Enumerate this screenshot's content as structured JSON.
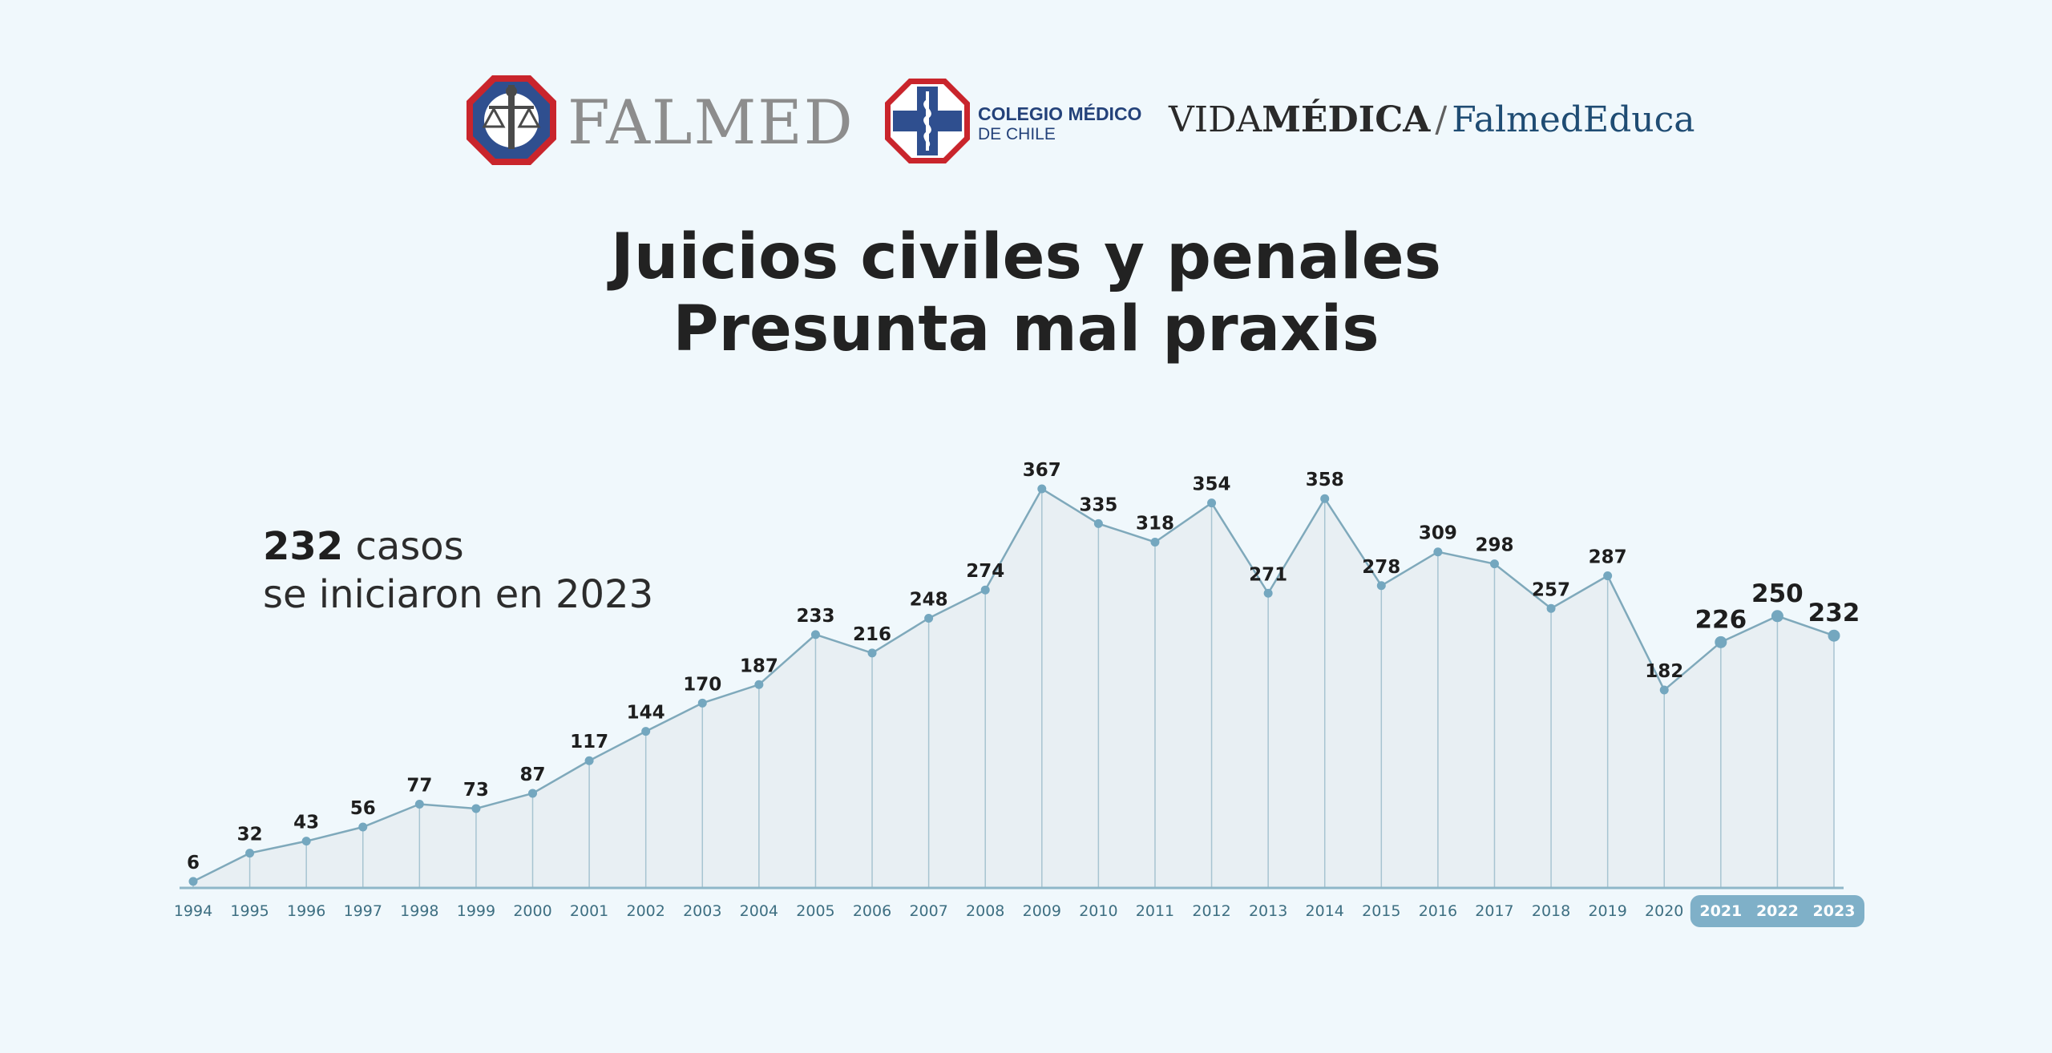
{
  "logos": {
    "falmed": "FALMED",
    "colegio_line1": "COLEGIO MÉDICO",
    "colegio_line2": "DE CHILE",
    "vida_regular": "VIDA",
    "vida_bold": "MÉDICA",
    "separator": "/",
    "falmed_educa": "FalmedEduca"
  },
  "heading": {
    "line1": "Juicios civiles y penales",
    "line2": "Presunta mal praxis"
  },
  "note": {
    "count": "232",
    "unit": " casos",
    "line2": "se iniciaron en 2023"
  },
  "colors": {
    "background": "#f0f8fc",
    "line": "#7fa9bb",
    "point": "#74a7bf",
    "area": "#e8eff3",
    "highlight_band": "#7fb0c8"
  },
  "chart_data": {
    "type": "area",
    "title": "",
    "xlabel": "",
    "ylabel": "",
    "x": [
      "1994",
      "1995",
      "1996",
      "1997",
      "1998",
      "1999",
      "2000",
      "2001",
      "2002",
      "2003",
      "2004",
      "2005",
      "2006",
      "2007",
      "2008",
      "2009",
      "2010",
      "2011",
      "2012",
      "2013",
      "2014",
      "2015",
      "2016",
      "2017",
      "2018",
      "2019",
      "2020",
      "2021",
      "2022",
      "2023"
    ],
    "values": [
      6,
      32,
      43,
      56,
      77,
      73,
      87,
      117,
      144,
      170,
      187,
      233,
      216,
      248,
      274,
      367,
      335,
      318,
      354,
      271,
      358,
      278,
      309,
      298,
      257,
      287,
      182,
      226,
      250,
      232
    ],
    "highlighted": [
      "2021",
      "2022",
      "2023"
    ],
    "ylim": [
      0,
      367
    ],
    "grid": false,
    "legend": "none"
  }
}
